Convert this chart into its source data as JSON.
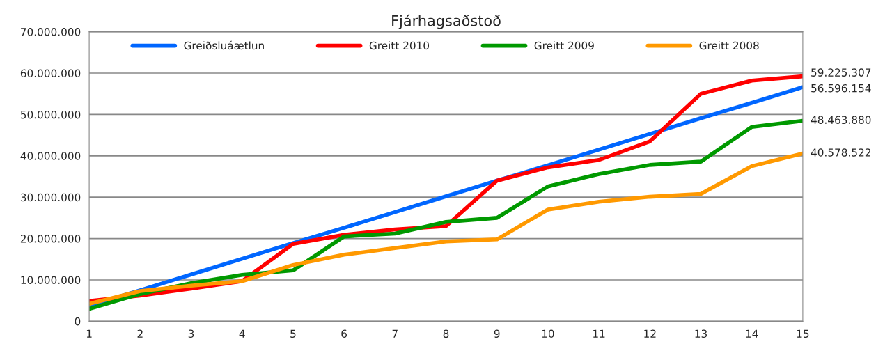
{
  "chart_data": {
    "type": "line",
    "title": "Fjárhagsaðstoð",
    "x": [
      1,
      2,
      3,
      4,
      5,
      6,
      7,
      8,
      9,
      10,
      11,
      12,
      13,
      14,
      15
    ],
    "series": [
      {
        "name": "Greiðsluáætlun",
        "color": "#0066ff",
        "values": [
          3800000,
          7500000,
          11300000,
          15100000,
          18900000,
          22600000,
          26400000,
          30200000,
          34000000,
          37700000,
          41500000,
          45300000,
          49100000,
          52800000,
          56596154
        ],
        "value_labels": [
          null,
          null,
          null,
          null,
          null,
          null,
          null,
          null,
          null,
          null,
          null,
          null,
          null,
          null,
          "56.596.154"
        ]
      },
      {
        "name": "Greitt 2010",
        "color": "#ff0000",
        "values": [
          4900000,
          6200000,
          7900000,
          9700000,
          18700000,
          20900000,
          22200000,
          23000000,
          34000000,
          37200000,
          39000000,
          43500000,
          55000000,
          58200000,
          59225307
        ],
        "value_labels": [
          null,
          null,
          null,
          null,
          null,
          null,
          null,
          null,
          null,
          null,
          null,
          null,
          null,
          null,
          "59.225.307"
        ]
      },
      {
        "name": "Greitt 2009",
        "color": "#009900",
        "values": [
          3000000,
          6600000,
          9200000,
          11200000,
          12300000,
          20500000,
          21200000,
          24000000,
          25000000,
          32600000,
          35600000,
          37800000,
          38600000,
          47000000,
          48463880
        ],
        "value_labels": [
          null,
          null,
          null,
          null,
          null,
          null,
          null,
          null,
          null,
          null,
          null,
          null,
          null,
          null,
          "48.463.880"
        ]
      },
      {
        "name": "Greitt 2008",
        "color": "#ff9900",
        "values": [
          4200000,
          7300000,
          8600000,
          9700000,
          13600000,
          16100000,
          17700000,
          19300000,
          19800000,
          27000000,
          28900000,
          30100000,
          30800000,
          37500000,
          40578522
        ],
        "value_labels": [
          null,
          null,
          null,
          null,
          null,
          null,
          null,
          null,
          null,
          null,
          null,
          null,
          null,
          null,
          "40.578.522"
        ]
      }
    ],
    "xlim": [
      1,
      15
    ],
    "xticks": [
      1,
      2,
      3,
      4,
      5,
      6,
      7,
      8,
      9,
      10,
      11,
      12,
      13,
      14,
      15
    ],
    "ylim": [
      0,
      70000000
    ],
    "yticks": [
      0,
      {
        "value": 10000000,
        "label": "10.000.000"
      },
      {
        "value": 20000000,
        "label": "20.000.000"
      },
      {
        "value": 30000000,
        "label": "30.000.000"
      },
      {
        "value": 40000000,
        "label": "40.000.000"
      },
      {
        "value": 50000000,
        "label": "50.000.000"
      },
      {
        "value": 60000000,
        "label": "60.000.000"
      },
      {
        "value": 70000000,
        "label": "70.000.000"
      }
    ],
    "grid": "y",
    "legend": "top",
    "line_style": "solid",
    "marker": "none"
  }
}
